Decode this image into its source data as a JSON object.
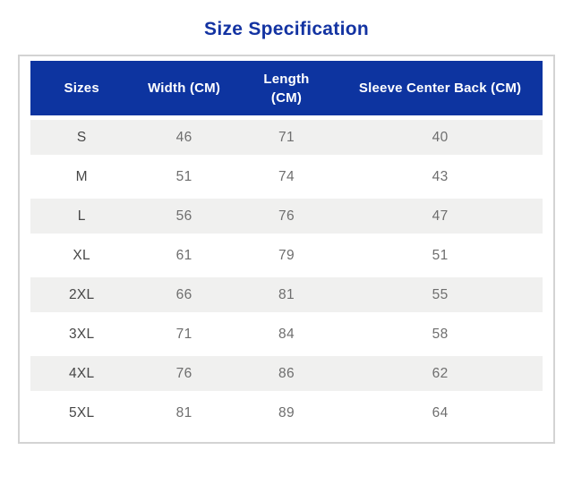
{
  "page": {
    "title": "Size Specification"
  },
  "colors": {
    "title_blue": "#1333a2",
    "header_bg_blue": "#0d34a0",
    "header_text": "#ffffff",
    "alt_row_bg": "#f0f0ef",
    "size_text": "#474747",
    "value_text": "#6e6e6e",
    "card_border": "#d3d3d3"
  },
  "chart_data": {
    "type": "table",
    "title": "Size Specification",
    "columns": [
      "Sizes",
      "Width (CM)",
      "Length (CM)",
      "Sleeve Center Back (CM)"
    ],
    "rows": [
      [
        "S",
        46,
        71,
        40
      ],
      [
        "M",
        51,
        74,
        43
      ],
      [
        "L",
        56,
        76,
        47
      ],
      [
        "XL",
        61,
        79,
        51
      ],
      [
        "2XL",
        66,
        81,
        55
      ],
      [
        "3XL",
        71,
        84,
        58
      ],
      [
        "4XL",
        76,
        86,
        62
      ],
      [
        "5XL",
        81,
        89,
        64
      ]
    ]
  }
}
